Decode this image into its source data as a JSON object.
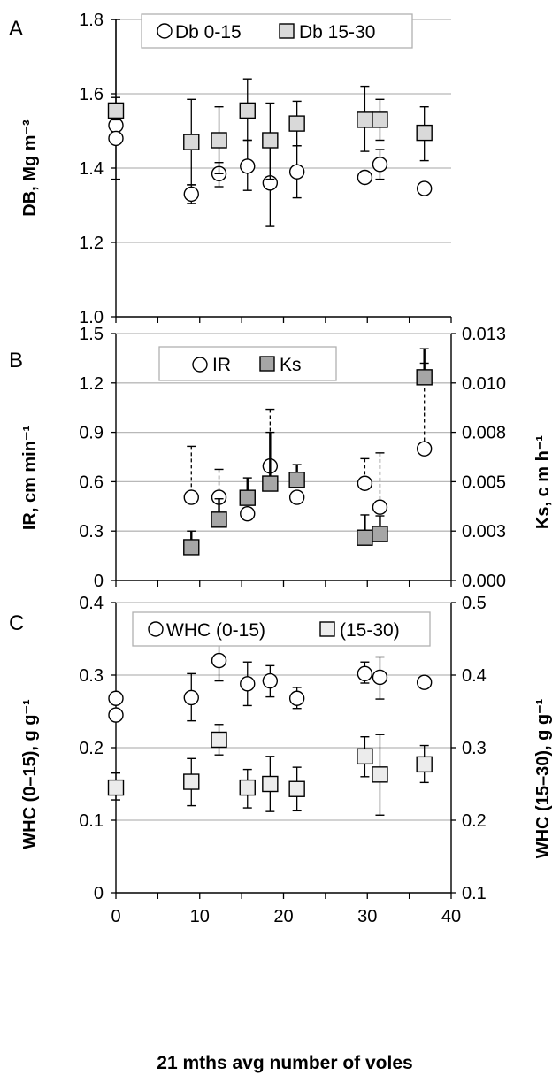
{
  "xlabel": "21 mths avg number of voles",
  "x_ticks": [
    "0",
    "10",
    "20",
    "30",
    "40"
  ],
  "colors": {
    "grid": "#b8b8b8",
    "light_square": "#d9d9d9",
    "dark_square": "#a6a6a6",
    "ws_square": "#ececec"
  },
  "chart_data": [
    {
      "type": "scatter",
      "panel": "A",
      "ylabel": "DB, Mg m⁻³",
      "xlim": [
        0,
        40
      ],
      "ylim": [
        1.0,
        1.8
      ],
      "y_ticks": [
        "1.0",
        "1.2",
        "1.4",
        "1.6",
        "1.8"
      ],
      "legend_position": "top-center",
      "series": [
        {
          "name": "Db 0-15",
          "marker": "circle",
          "points": [
            {
              "x": 0,
              "y": 1.515,
              "lo": 1.37,
              "hi": 1.59
            },
            {
              "x": 0,
              "y": 1.48
            },
            {
              "x": 9,
              "y": 1.33,
              "lo": 1.305,
              "hi": 1.355
            },
            {
              "x": 12.3,
              "y": 1.385,
              "lo": 1.35,
              "hi": 1.415
            },
            {
              "x": 15.7,
              "y": 1.405,
              "lo": 1.34,
              "hi": 1.475
            },
            {
              "x": 18.4,
              "y": 1.36,
              "lo": 1.245,
              "hi": 1.47
            },
            {
              "x": 21.6,
              "y": 1.39,
              "lo": 1.32,
              "hi": 1.46
            },
            {
              "x": 29.7,
              "y": 1.375
            },
            {
              "x": 31.5,
              "y": 1.41,
              "lo": 1.37,
              "hi": 1.45
            },
            {
              "x": 36.8,
              "y": 1.345
            }
          ]
        },
        {
          "name": "Db 15-30",
          "marker": "square",
          "points": [
            {
              "x": 0,
              "y": 1.555,
              "lo": 1.53,
              "hi": 1.8
            },
            {
              "x": 9,
              "y": 1.47,
              "lo": 1.355,
              "hi": 1.585
            },
            {
              "x": 12.3,
              "y": 1.475,
              "lo": 1.385,
              "hi": 1.565
            },
            {
              "x": 15.7,
              "y": 1.555,
              "lo": 1.475,
              "hi": 1.64
            },
            {
              "x": 18.4,
              "y": 1.475,
              "lo": 1.37,
              "hi": 1.575
            },
            {
              "x": 21.6,
              "y": 1.52,
              "lo": 1.46,
              "hi": 1.58
            },
            {
              "x": 29.7,
              "y": 1.53,
              "lo": 1.445,
              "hi": 1.62
            },
            {
              "x": 31.5,
              "y": 1.53,
              "lo": 1.475,
              "hi": 1.585
            },
            {
              "x": 36.8,
              "y": 1.495,
              "lo": 1.42,
              "hi": 1.565
            }
          ]
        }
      ]
    },
    {
      "type": "scatter",
      "panel": "B",
      "ylabel": "IR, cm min⁻¹",
      "y2label": "Ks, c m h⁻¹",
      "xlim": [
        0,
        40
      ],
      "ylim": [
        0,
        1.5
      ],
      "y2lim": [
        0,
        0.013
      ],
      "y_ticks": [
        "0",
        "0.3",
        "0.6",
        "0.9",
        "1.2",
        "1.5"
      ],
      "y2_ticks": [
        "0.000",
        "0.003",
        "0.005",
        "0.008",
        "0.010",
        "0.013"
      ],
      "legend_position": "top-center",
      "series": [
        {
          "name": "IR",
          "marker": "circle",
          "axis": "left",
          "points": [
            {
              "x": 9,
              "y": 0.505,
              "hi": 0.815
            },
            {
              "x": 12.3,
              "y": 0.505,
              "hi": 0.675
            },
            {
              "x": 15.7,
              "y": 0.405
            },
            {
              "x": 18.4,
              "y": 0.695,
              "hi": 1.04
            },
            {
              "x": 21.6,
              "y": 0.505
            },
            {
              "x": 29.7,
              "y": 0.59,
              "hi": 0.74
            },
            {
              "x": 31.5,
              "y": 0.445,
              "hi": 0.775
            },
            {
              "x": 36.8,
              "y": 0.8,
              "hi": 1.32
            }
          ]
        },
        {
          "name": "Ks",
          "marker": "square",
          "axis": "right",
          "points": [
            {
              "x": 9,
              "y": 0.00175,
              "hi": 0.0026
            },
            {
              "x": 12.3,
              "y": 0.0032,
              "hi": 0.0043
            },
            {
              "x": 15.7,
              "y": 0.00435,
              "hi": 0.0054
            },
            {
              "x": 18.4,
              "y": 0.0051,
              "hi": 0.0078
            },
            {
              "x": 21.6,
              "y": 0.0053,
              "hi": 0.0061
            },
            {
              "x": 29.7,
              "y": 0.00225,
              "hi": 0.00345
            },
            {
              "x": 31.5,
              "y": 0.00245,
              "hi": 0.0034
            },
            {
              "x": 36.8,
              "y": 0.0107,
              "hi": 0.0122
            }
          ]
        }
      ]
    },
    {
      "type": "scatter",
      "panel": "C",
      "ylabel": "WHC (0–15), g g⁻¹",
      "y2label": "WHC (15–30), g g⁻¹",
      "xlim": [
        0,
        40
      ],
      "ylim": [
        0,
        0.4
      ],
      "y2lim": [
        0.1,
        0.5
      ],
      "y_ticks": [
        "0",
        "0.1",
        "0.2",
        "0.3",
        "0.4"
      ],
      "y2_ticks": [
        "0.1",
        "0.2",
        "0.3",
        "0.4",
        "0.5"
      ],
      "legend_position": "top-center",
      "series": [
        {
          "name": "WHC (0-15)",
          "marker": "circle",
          "axis": "left",
          "points": [
            {
              "x": 0,
              "y": 0.268
            },
            {
              "x": 0,
              "y": 0.245
            },
            {
              "x": 9,
              "y": 0.269,
              "lo": 0.237,
              "hi": 0.302
            },
            {
              "x": 12.3,
              "y": 0.32,
              "lo": 0.292,
              "hi": 0.347
            },
            {
              "x": 15.7,
              "y": 0.288,
              "lo": 0.258,
              "hi": 0.318
            },
            {
              "x": 18.4,
              "y": 0.292,
              "lo": 0.27,
              "hi": 0.313
            },
            {
              "x": 21.6,
              "y": 0.268,
              "lo": 0.254,
              "hi": 0.283
            },
            {
              "x": 29.7,
              "y": 0.302,
              "lo": 0.289,
              "hi": 0.318
            },
            {
              "x": 31.5,
              "y": 0.297,
              "lo": 0.267,
              "hi": 0.325
            },
            {
              "x": 36.8,
              "y": 0.29
            }
          ]
        },
        {
          "name": "(15-30)",
          "marker": "square",
          "axis": "right",
          "points": [
            {
              "x": 0,
              "y": 0.245,
              "lo": 0.228,
              "hi": 0.265
            },
            {
              "x": 9,
              "y": 0.253,
              "lo": 0.22,
              "hi": 0.285
            },
            {
              "x": 12.3,
              "y": 0.311,
              "lo": 0.29,
              "hi": 0.332
            },
            {
              "x": 15.7,
              "y": 0.245,
              "lo": 0.217,
              "hi": 0.27
            },
            {
              "x": 18.4,
              "y": 0.25,
              "lo": 0.212,
              "hi": 0.288
            },
            {
              "x": 21.6,
              "y": 0.243,
              "lo": 0.213,
              "hi": 0.273
            },
            {
              "x": 29.7,
              "y": 0.288,
              "lo": 0.26,
              "hi": 0.315
            },
            {
              "x": 31.5,
              "y": 0.263,
              "lo": 0.207,
              "hi": 0.318
            },
            {
              "x": 36.8,
              "y": 0.277,
              "lo": 0.252,
              "hi": 0.303
            }
          ]
        }
      ]
    }
  ]
}
